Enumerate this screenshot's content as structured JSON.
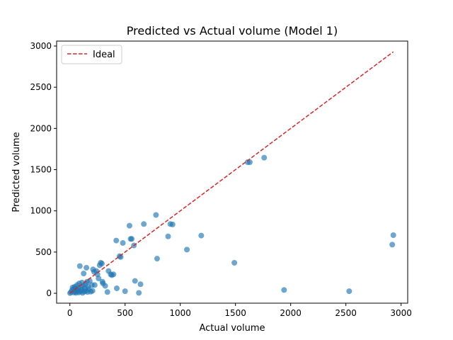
{
  "chart_data": {
    "type": "scatter",
    "title": "Predicted vs Actual volume (Model 1)",
    "xlabel": "Actual volume",
    "ylabel": "Predicted volume",
    "xlim": [
      -120,
      3060
    ],
    "ylim": [
      -120,
      3060
    ],
    "xticks": [
      0,
      500,
      1000,
      1500,
      2000,
      2500,
      3000
    ],
    "yticks": [
      0,
      500,
      1000,
      1500,
      2000,
      2500,
      3000
    ],
    "grid": false,
    "legend_position": "top-left",
    "colors": {
      "points": "#1f77b4",
      "ideal": "#d62728"
    },
    "series": [
      {
        "kind": "points",
        "points": [
          [
            2,
            2
          ],
          [
            10,
            15
          ],
          [
            20,
            40
          ],
          [
            25,
            70
          ],
          [
            35,
            10
          ],
          [
            40,
            60
          ],
          [
            45,
            80
          ],
          [
            50,
            20
          ],
          [
            55,
            5
          ],
          [
            60,
            45
          ],
          [
            65,
            100
          ],
          [
            70,
            30
          ],
          [
            75,
            60
          ],
          [
            80,
            10
          ],
          [
            85,
            120
          ],
          [
            90,
            330
          ],
          [
            95,
            20
          ],
          [
            100,
            70
          ],
          [
            105,
            40
          ],
          [
            110,
            130
          ],
          [
            115,
            5
          ],
          [
            120,
            90
          ],
          [
            125,
            240
          ],
          [
            130,
            20
          ],
          [
            135,
            60
          ],
          [
            140,
            110
          ],
          [
            145,
            30
          ],
          [
            150,
            310
          ],
          [
            155,
            140
          ],
          [
            160,
            15
          ],
          [
            165,
            80
          ],
          [
            170,
            50
          ],
          [
            180,
            150
          ],
          [
            190,
            20
          ],
          [
            200,
            100
          ],
          [
            205,
            30
          ],
          [
            210,
            290
          ],
          [
            220,
            260
          ],
          [
            225,
            100
          ],
          [
            240,
            270
          ],
          [
            250,
            230
          ],
          [
            260,
            180
          ],
          [
            270,
            340
          ],
          [
            280,
            370
          ],
          [
            290,
            360
          ],
          [
            295,
            140
          ],
          [
            300,
            120
          ],
          [
            320,
            90
          ],
          [
            340,
            15
          ],
          [
            350,
            270
          ],
          [
            370,
            230
          ],
          [
            380,
            220
          ],
          [
            395,
            230
          ],
          [
            420,
            640
          ],
          [
            425,
            60
          ],
          [
            450,
            450
          ],
          [
            460,
            440
          ],
          [
            480,
            610
          ],
          [
            500,
            25
          ],
          [
            540,
            820
          ],
          [
            550,
            660
          ],
          [
            560,
            660
          ],
          [
            580,
            580
          ],
          [
            590,
            150
          ],
          [
            625,
            5
          ],
          [
            640,
            110
          ],
          [
            670,
            840
          ],
          [
            780,
            950
          ],
          [
            790,
            420
          ],
          [
            890,
            690
          ],
          [
            910,
            840
          ],
          [
            930,
            835
          ],
          [
            1060,
            530
          ],
          [
            1190,
            700
          ],
          [
            1490,
            370
          ],
          [
            1610,
            1590
          ],
          [
            1630,
            1590
          ],
          [
            1760,
            1645
          ],
          [
            1940,
            40
          ],
          [
            2530,
            25
          ],
          [
            2920,
            590
          ],
          [
            2930,
            705
          ]
        ]
      },
      {
        "kind": "line",
        "name": "Ideal",
        "points": [
          [
            0,
            0
          ],
          [
            2930,
            2930
          ]
        ]
      }
    ]
  }
}
